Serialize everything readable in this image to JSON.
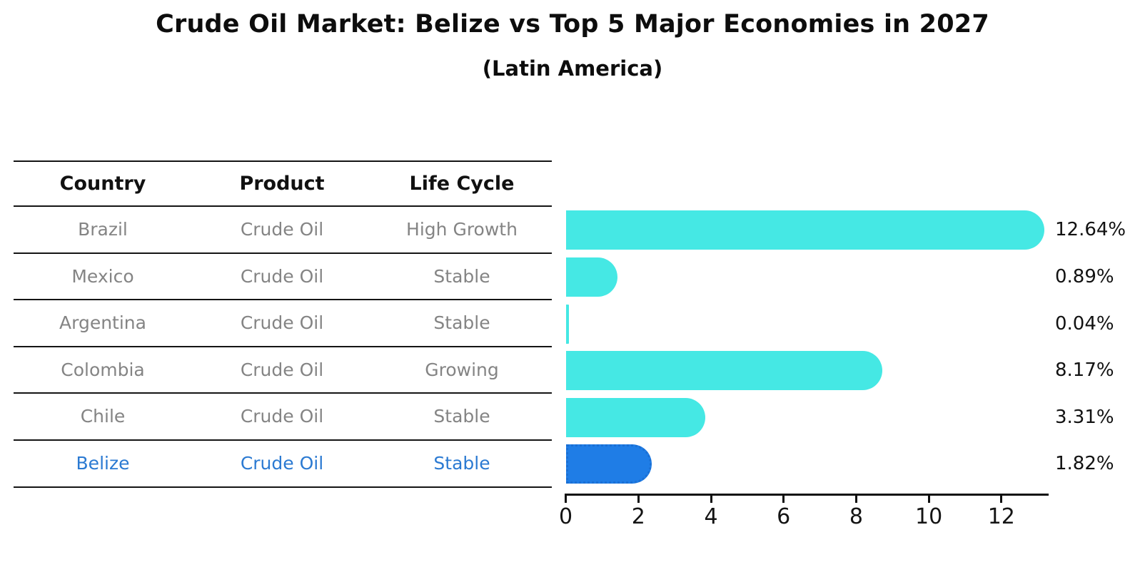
{
  "title": "Crude Oil Market: Belize vs Top 5 Major Economies in 2027",
  "subtitle": "(Latin America)",
  "table": {
    "columns": [
      "Country",
      "Product",
      "Life Cycle"
    ],
    "rows": [
      {
        "country": "Brazil",
        "product": "Crude Oil",
        "life_cycle": "High Growth",
        "highlight": false
      },
      {
        "country": "Mexico",
        "product": "Crude Oil",
        "life_cycle": "Stable",
        "highlight": false
      },
      {
        "country": "Argentina",
        "product": "Crude Oil",
        "life_cycle": "Stable",
        "highlight": false
      },
      {
        "country": "Colombia",
        "product": "Crude Oil",
        "life_cycle": "Growing",
        "highlight": false
      },
      {
        "country": "Chile",
        "product": "Crude Oil",
        "life_cycle": "Stable",
        "highlight": false
      },
      {
        "country": "Belize",
        "product": "Crude Oil",
        "life_cycle": "Stable",
        "highlight": true
      }
    ]
  },
  "chart_data": {
    "type": "bar",
    "orientation": "horizontal",
    "title": "Crude Oil Market: Belize vs Top 5 Major Economies in 2027",
    "subtitle": "(Latin America)",
    "categories": [
      "Brazil",
      "Mexico",
      "Argentina",
      "Colombia",
      "Chile",
      "Belize"
    ],
    "values": [
      12.64,
      0.89,
      0.04,
      8.17,
      3.31,
      1.82
    ],
    "value_labels": [
      "12.64%",
      "0.89%",
      "0.04%",
      "8.17%",
      "3.31%",
      "1.82%"
    ],
    "unit": "percent",
    "x_ticks": [
      0,
      2,
      4,
      6,
      8,
      10,
      12
    ],
    "xlim": [
      0,
      13.3
    ],
    "grid": false,
    "legend": false,
    "highlight_index": 5,
    "bar_color": "#45e8e4",
    "highlight_bar_color": "#1f7de6",
    "bar_end_style": "rounded-right"
  },
  "colors": {
    "background": "#ffffff",
    "title_text": "#0d0d0d",
    "table_header_text": "#111111",
    "table_row_text": "#848484",
    "highlight_text": "#2b7ad2",
    "axis": "#0f0f0f",
    "bar_cyan": "#45e8e4",
    "bar_blue": "#1f7de6"
  }
}
